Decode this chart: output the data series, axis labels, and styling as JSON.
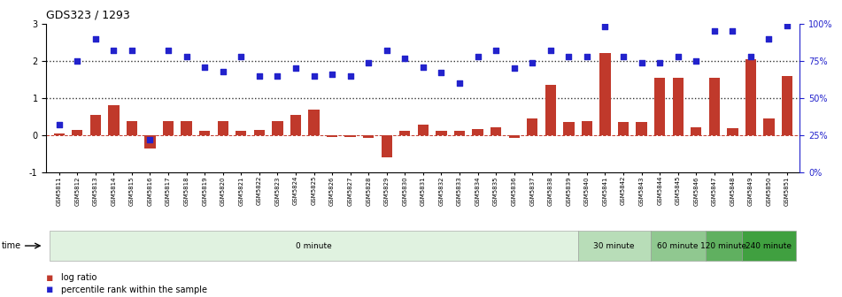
{
  "title": "GDS323 / 1293",
  "samples": [
    "GSM5811",
    "GSM5812",
    "GSM5813",
    "GSM5814",
    "GSM5815",
    "GSM5816",
    "GSM5817",
    "GSM5818",
    "GSM5819",
    "GSM5820",
    "GSM5821",
    "GSM5822",
    "GSM5823",
    "GSM5824",
    "GSM5825",
    "GSM5826",
    "GSM5827",
    "GSM5828",
    "GSM5829",
    "GSM5830",
    "GSM5831",
    "GSM5832",
    "GSM5833",
    "GSM5834",
    "GSM5835",
    "GSM5836",
    "GSM5837",
    "GSM5838",
    "GSM5839",
    "GSM5840",
    "GSM5841",
    "GSM5842",
    "GSM5843",
    "GSM5844",
    "GSM5845",
    "GSM5846",
    "GSM5847",
    "GSM5848",
    "GSM5849",
    "GSM5850",
    "GSM5851"
  ],
  "log_ratio": [
    0.05,
    0.15,
    0.55,
    0.8,
    0.38,
    -0.35,
    0.38,
    0.38,
    0.12,
    0.38,
    0.12,
    0.15,
    0.38,
    0.55,
    0.68,
    -0.05,
    -0.05,
    -0.08,
    -0.6,
    0.12,
    0.28,
    0.12,
    0.12,
    0.17,
    0.22,
    -0.08,
    0.45,
    1.35,
    0.35,
    0.38,
    2.2,
    0.35,
    0.35,
    1.55,
    1.55,
    0.22,
    1.55,
    0.18,
    2.05,
    0.45,
    1.6
  ],
  "percentile_pct": [
    32,
    75,
    90,
    82,
    82,
    22,
    82,
    78,
    71,
    68,
    78,
    65,
    65,
    70,
    65,
    66,
    65,
    74,
    82,
    77,
    71,
    67,
    60,
    78,
    82,
    70,
    74,
    82,
    78,
    78,
    98,
    78,
    74,
    74,
    78,
    75,
    95,
    95,
    78,
    90,
    99
  ],
  "time_groups": [
    {
      "label": "0 minute",
      "start": 0,
      "end": 29,
      "color": "#e0f2e0"
    },
    {
      "label": "30 minute",
      "start": 29,
      "end": 33,
      "color": "#b8ddb8"
    },
    {
      "label": "60 minute",
      "start": 33,
      "end": 36,
      "color": "#90c890"
    },
    {
      "label": "120 minute",
      "start": 36,
      "end": 38,
      "color": "#60b060"
    },
    {
      "label": "240 minute",
      "start": 38,
      "end": 41,
      "color": "#40a040"
    }
  ],
  "ylim_left": [
    -1,
    3
  ],
  "ylim_right": [
    0,
    100
  ],
  "bar_color": "#c0392b",
  "dot_color": "#2222cc",
  "hline_color": "#c0392b",
  "dotted_line_color": "#333333",
  "background_color": "#ffffff",
  "right_axis_color": "#2222cc"
}
